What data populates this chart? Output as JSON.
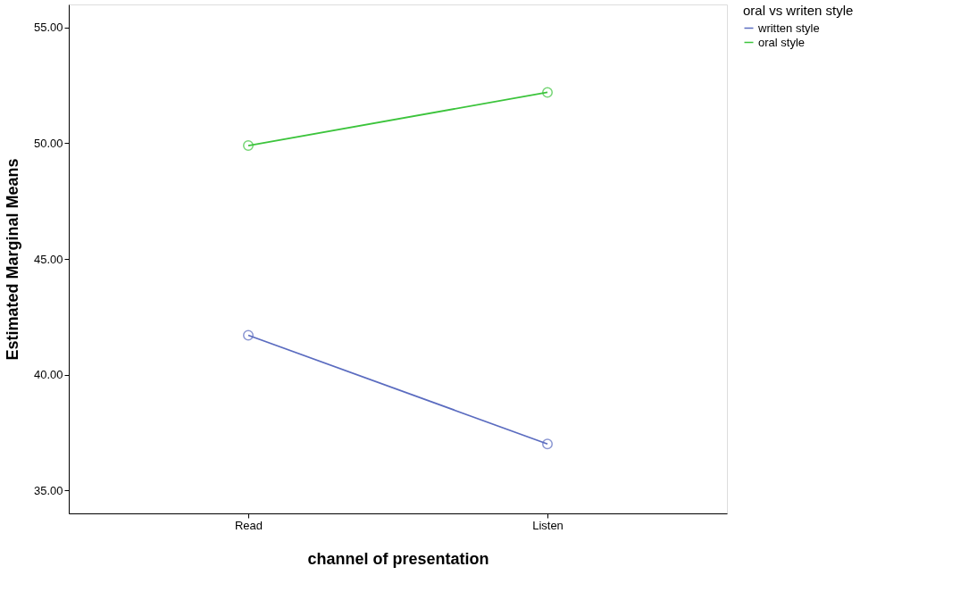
{
  "chart_data": {
    "type": "line",
    "xlabel": "channel of presentation",
    "ylabel": "Estimated Marginal Means",
    "legend_title": "oral vs writen style",
    "categories": [
      "Read",
      "Listen"
    ],
    "series": [
      {
        "name": "written style",
        "color": "#5b6cc0",
        "values": [
          41.7,
          37.0
        ]
      },
      {
        "name": "oral style",
        "color": "#3cc43c",
        "values": [
          49.9,
          52.2
        ]
      }
    ],
    "ylim": [
      34,
      56
    ],
    "yticks": [
      {
        "value": 35,
        "label": "35.00"
      },
      {
        "value": 40,
        "label": "40.00"
      },
      {
        "value": 45,
        "label": "45.00"
      },
      {
        "value": 50,
        "label": "50.00"
      },
      {
        "value": 55,
        "label": "55.00"
      }
    ],
    "grid": false,
    "legend": "top right",
    "marker": "circle",
    "line_style": "solid"
  }
}
